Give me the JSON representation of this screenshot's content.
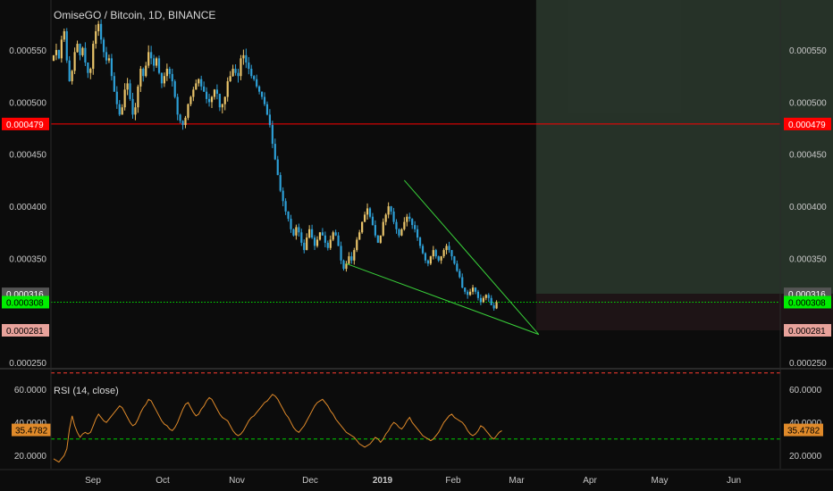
{
  "chart_title": "OmiseGO / Bitcoin, 1D, BINANCE",
  "colors": {
    "background": "#0c0c0c",
    "up_candle": "#e9c46a",
    "down_candle": "#2d9fd6",
    "red_line": "#ff0000",
    "green_line": "#00e600",
    "wedge": "#39d13a",
    "target_zone": "#2c3a2e",
    "stop_zone": "#1e1416",
    "rsi_line": "#e08a2a",
    "rsi_upper": "#ff3b30",
    "rsi_lower": "#00cc00",
    "axis_text": "#c8c8c8"
  },
  "chart_data": [
    {
      "type": "candlestick",
      "title": "OmiseGO / Bitcoin, 1D, BINANCE",
      "ylim": [
        0.000245,
        0.000598
      ],
      "y_ticks": [
        "0.000550",
        "0.000500",
        "0.000450",
        "0.000400",
        "0.000350",
        "0.000250"
      ],
      "x_ticks": [
        "Sep",
        "Oct",
        "Nov",
        "Dec",
        "2019",
        "Feb",
        "Mar",
        "Apr",
        "May",
        "Jun"
      ],
      "price_markers": [
        {
          "label": "0.000479",
          "value": 0.000479,
          "color": "#ff0000",
          "text_color": "#ffffff"
        },
        {
          "label": "0.000316",
          "value": 0.000316,
          "color": "#555555",
          "text_color": "#ffffff"
        },
        {
          "label": "0.000308",
          "value": 0.000308,
          "color": "#00ee00",
          "text_color": "#000000"
        },
        {
          "label": "0.000281",
          "value": 0.000281,
          "color": "#e8a29b",
          "text_color": "#000000"
        }
      ],
      "horizontal_lines": [
        {
          "value": 0.000479,
          "style": "solid",
          "color": "#ff0000"
        },
        {
          "value": 0.000308,
          "style": "dotted",
          "color": "#00e600"
        }
      ],
      "trend_lines": [
        {
          "from": [
            133,
            0.000425
          ],
          "to": [
            184,
            0.000277
          ]
        },
        {
          "from": [
            111,
            0.000345
          ],
          "to": [
            184,
            0.000277
          ]
        }
      ],
      "target_box": {
        "x_from": 183,
        "x_to": 301,
        "top": 0.000598,
        "bottom": 0.000316
      },
      "stop_box": {
        "x_from": 183,
        "x_to": 301,
        "top": 0.000316,
        "bottom": 0.000281
      },
      "series": [
        {
          "name": "price",
          "closes": [
            0.000545,
            0.00055,
            0.000542,
            0.00056,
            0.000568,
            0.00054,
            0.00052,
            0.00053,
            0.000548,
            0.000556,
            0.000545,
            0.000552,
            0.000538,
            0.000528,
            0.000532,
            0.000556,
            0.000568,
            0.000575,
            0.00056,
            0.000548,
            0.00054,
            0.000542,
            0.000525,
            0.00051,
            0.000498,
            0.000488,
            0.000495,
            0.000512,
            0.000518,
            0.000503,
            0.000488,
            0.000495,
            0.000515,
            0.000532,
            0.000525,
            0.000535,
            0.000548,
            0.000542,
            0.000535,
            0.000542,
            0.000528,
            0.000518,
            0.000525,
            0.000532,
            0.000527,
            0.00052,
            0.000505,
            0.000488,
            0.000482,
            0.000478,
            0.000485,
            0.000498,
            0.000505,
            0.000512,
            0.000518,
            0.000522,
            0.000515,
            0.00051,
            0.000503,
            0.0005,
            0.000505,
            0.000512,
            0.000508,
            0.000495,
            0.000498,
            0.000505,
            0.00052,
            0.000525,
            0.000532,
            0.000528,
            0.000525,
            0.000542,
            0.000545,
            0.000538,
            0.000532,
            0.000525,
            0.000522,
            0.000515,
            0.00051,
            0.000505,
            0.000498,
            0.000488,
            0.000478,
            0.00046,
            0.000445,
            0.00043,
            0.000415,
            0.000405,
            0.000395,
            0.000388,
            0.000378,
            0.000372,
            0.00038,
            0.000375,
            0.000365,
            0.000358,
            0.00037,
            0.000378,
            0.00037,
            0.000362,
            0.000368,
            0.000375,
            0.000372,
            0.000365,
            0.00036,
            0.000368,
            0.000375,
            0.000372,
            0.000362,
            0.000348,
            0.00034,
            0.000345,
            0.000352,
            0.000348,
            0.000358,
            0.000368,
            0.000375,
            0.000385,
            0.000392,
            0.000398,
            0.00039,
            0.000382,
            0.000372,
            0.000365,
            0.000372,
            0.000385,
            0.000392,
            0.0004,
            0.000395,
            0.000385,
            0.000378,
            0.000372,
            0.000378,
            0.000385,
            0.00039,
            0.000388,
            0.000382,
            0.000378,
            0.00037,
            0.000362,
            0.000355,
            0.000348,
            0.000345,
            0.000352,
            0.000358,
            0.000352,
            0.000348,
            0.000352,
            0.000358,
            0.000362,
            0.000358,
            0.000352,
            0.000345,
            0.000338,
            0.000332,
            0.000322,
            0.000318,
            0.000315,
            0.000318,
            0.000322,
            0.000318,
            0.000312,
            0.000308,
            0.000312,
            0.000315,
            0.000312,
            0.000305,
            0.000302,
            0.000308
          ]
        }
      ]
    },
    {
      "type": "line",
      "title": "RSI (14, close)",
      "ylim": [
        12,
        72
      ],
      "y_ticks": [
        "60.0000",
        "40.0000",
        "20.0000"
      ],
      "levels": [
        {
          "value": 70,
          "style": "dashed"
        },
        {
          "value": 30,
          "style": "dashed"
        }
      ],
      "value_marker": {
        "label": "35.4782",
        "value": 35.4782
      },
      "series": [
        {
          "name": "RSI",
          "values": [
            18,
            17,
            16,
            18,
            20,
            24,
            36,
            44,
            38,
            34,
            31,
            33,
            34,
            33,
            34,
            38,
            42,
            45,
            43,
            41,
            40,
            42,
            44,
            46,
            48,
            50,
            49,
            46,
            43,
            40,
            38,
            39,
            42,
            46,
            49,
            51,
            54,
            53,
            50,
            47,
            44,
            41,
            39,
            38,
            36,
            35,
            37,
            40,
            44,
            48,
            51,
            52,
            49,
            46,
            44,
            45,
            48,
            50,
            53,
            55,
            54,
            51,
            48,
            45,
            43,
            42,
            41,
            38,
            35,
            33,
            32,
            33,
            35,
            38,
            41,
            43,
            44,
            46,
            48,
            50,
            52,
            53,
            55,
            57,
            56,
            54,
            51,
            48,
            45,
            43,
            40,
            37,
            35,
            34,
            36,
            38,
            41,
            44,
            47,
            50,
            52,
            53,
            54,
            52,
            50,
            47,
            45,
            42,
            40,
            38,
            36,
            34,
            33,
            32,
            31,
            29,
            27,
            26,
            25,
            26,
            27,
            29,
            31,
            30,
            28,
            30,
            33,
            35,
            38,
            40,
            39,
            37,
            36,
            38,
            41,
            43,
            40,
            38,
            36,
            34,
            32,
            31,
            30,
            29,
            30,
            32,
            34,
            37,
            40,
            42,
            44,
            45,
            43,
            42,
            41,
            40,
            38,
            35,
            33,
            32,
            33,
            35,
            38,
            37,
            35,
            33,
            31,
            30,
            32,
            34,
            35
          ]
        }
      ]
    }
  ]
}
